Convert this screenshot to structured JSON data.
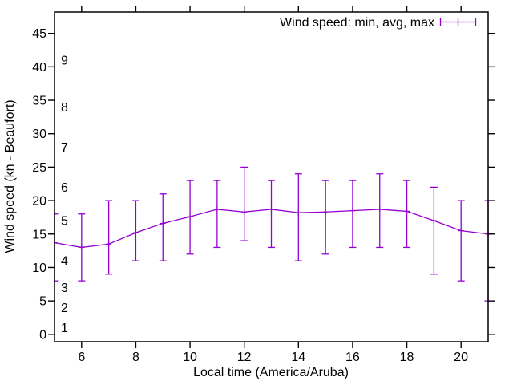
{
  "chart_data": {
    "type": "line",
    "title": "",
    "legend": {
      "label": "Wind speed: min, avg, max",
      "position": "top-right-inside",
      "symbol": "errorbar"
    },
    "xlabel": "Local time (America/Aruba)",
    "ylabel": "Wind speed (kn - Beaufort)",
    "x": [
      5,
      6,
      7,
      8,
      9,
      10,
      11,
      12,
      13,
      14,
      15,
      16,
      17,
      18,
      19,
      20,
      21
    ],
    "series": [
      {
        "name": "avg",
        "values": [
          13.7,
          13,
          13.5,
          15.2,
          16.6,
          17.6,
          18.7,
          18.3,
          18.7,
          18.2,
          18.3,
          18.5,
          18.7,
          18.4,
          17,
          15.5,
          15
        ]
      },
      {
        "name": "min",
        "values": [
          8,
          8,
          9,
          11,
          11,
          12,
          13,
          14,
          13,
          11,
          12,
          13,
          13,
          13,
          9,
          8,
          5
        ]
      },
      {
        "name": "max",
        "values": [
          18,
          18,
          20,
          20,
          21,
          23,
          23,
          25,
          23,
          24,
          23,
          23,
          24,
          23,
          22,
          20,
          20
        ]
      }
    ],
    "xlim": [
      5,
      21
    ],
    "ylim": [
      -1.1,
      48.2
    ],
    "xticks": [
      6,
      8,
      10,
      12,
      14,
      16,
      18,
      20
    ],
    "yticks": [
      0,
      5,
      10,
      15,
      20,
      25,
      30,
      35,
      40,
      45
    ],
    "beaufort_labels": {
      "values": [
        1,
        2,
        3,
        4,
        5,
        6,
        7,
        8,
        9
      ],
      "knots": [
        1,
        4,
        7,
        11,
        17,
        22,
        28,
        34,
        41
      ]
    },
    "grid": false,
    "line_color": "#9400d3",
    "axis_color": "#000000",
    "background": "#ffffff"
  }
}
